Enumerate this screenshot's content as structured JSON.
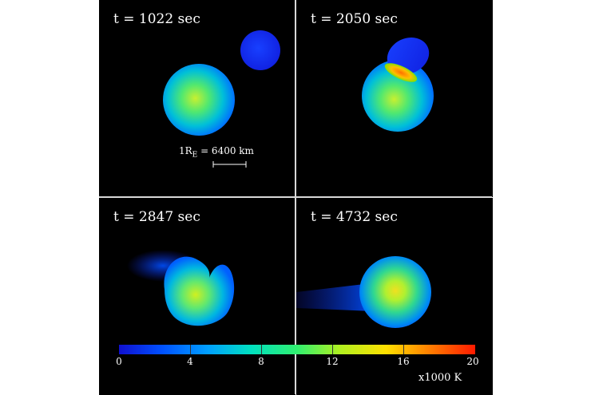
{
  "panels": [
    {
      "time_label": "t = 1022 sec"
    },
    {
      "time_label": "t = 2050 sec"
    },
    {
      "time_label": "t = 2847 sec"
    },
    {
      "time_label": "t = 4732 sec"
    }
  ],
  "scale_bar": {
    "prefix": "1R",
    "subscript": "E",
    "suffix": " = 6400 km"
  },
  "colorbar": {
    "ticks": [
      "0",
      "4",
      "8",
      "12",
      "16",
      "20"
    ],
    "unit": "x1000 K",
    "colors": [
      "#1010d0",
      "#0050ff",
      "#00a0ff",
      "#00e0c0",
      "#30f070",
      "#b0f020",
      "#ffe000",
      "#ff8000",
      "#ff1a00"
    ]
  }
}
